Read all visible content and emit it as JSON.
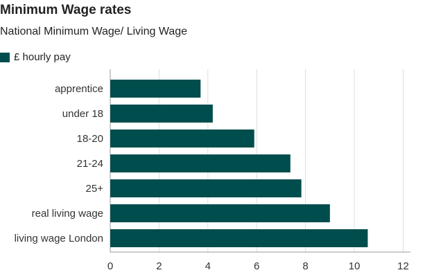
{
  "header": {
    "title": "Minimum Wage rates",
    "subtitle": "National Minimum Wage/ Living Wage"
  },
  "colors": {
    "bar": "#004d4d",
    "grid": "#dddddd",
    "axis": "#999999"
  },
  "chart_data": {
    "type": "bar",
    "orientation": "horizontal",
    "title": "Minimum Wage rates",
    "subtitle": "National Minimum Wage/ Living Wage",
    "categories": [
      "apprentice",
      "under 18",
      "18-20",
      "21-24",
      "25+",
      "real living wage",
      "living wage London"
    ],
    "series": [
      {
        "name": "£ hourly pay",
        "values": [
          3.7,
          4.2,
          5.9,
          7.38,
          7.83,
          9.0,
          10.55
        ]
      }
    ],
    "xlim": [
      0,
      12.3
    ],
    "xticks": [
      0,
      2,
      4,
      6,
      8,
      10,
      12
    ],
    "grid": "vertical",
    "legend": "top-left"
  }
}
